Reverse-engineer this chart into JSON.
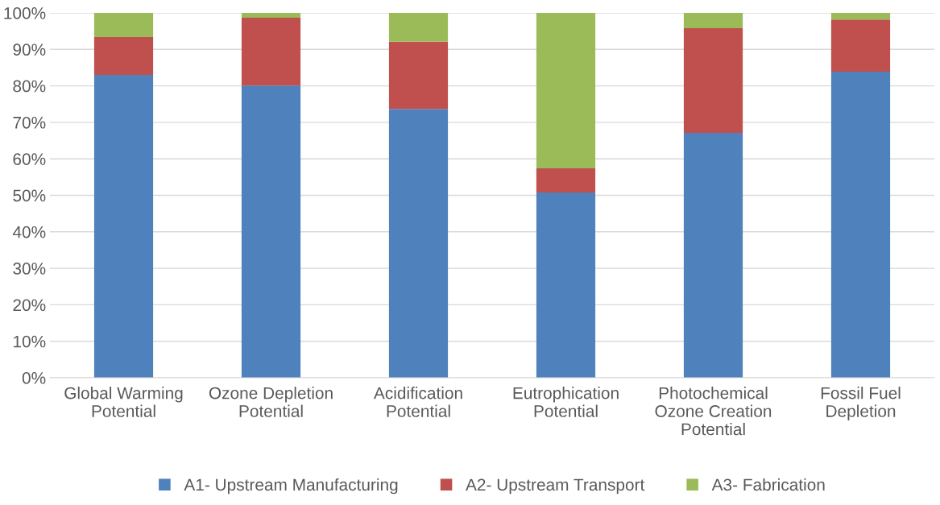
{
  "chart_data": {
    "type": "bar",
    "stacked": true,
    "categories": [
      "Global Warming\nPotential",
      "Ozone Depletion\nPotential",
      "Acidification\nPotential",
      "Eutrophication\nPotential",
      "Photochemical\nOzone Creation\nPotential",
      "Fossil Fuel\nDepletion"
    ],
    "series": [
      {
        "name": "A1- Upstream Manufacturing",
        "color": "#4f81bd",
        "values": [
          83.0,
          80.1,
          73.7,
          50.8,
          67.1,
          83.9
        ]
      },
      {
        "name": "A2- Upstream Transport",
        "color": "#c0504d",
        "values": [
          10.4,
          18.6,
          18.4,
          6.6,
          28.7,
          14.3
        ]
      },
      {
        "name": "A3- Fabrication",
        "color": "#9bbb59",
        "values": [
          6.6,
          1.3,
          7.9,
          42.6,
          4.2,
          1.8
        ]
      }
    ],
    "ylim": [
      0,
      100
    ],
    "yticks": [
      {
        "value": 0,
        "label": "0%"
      },
      {
        "value": 10,
        "label": "10%"
      },
      {
        "value": 20,
        "label": "20%"
      },
      {
        "value": 30,
        "label": "30%"
      },
      {
        "value": 40,
        "label": "40%"
      },
      {
        "value": 50,
        "label": "50%"
      },
      {
        "value": 60,
        "label": "60%"
      },
      {
        "value": 70,
        "label": "70%"
      },
      {
        "value": 80,
        "label": "80%"
      },
      {
        "value": 90,
        "label": "90%"
      },
      {
        "value": 100,
        "label": "100%"
      }
    ],
    "grid": "y",
    "legend": "bottom"
  }
}
